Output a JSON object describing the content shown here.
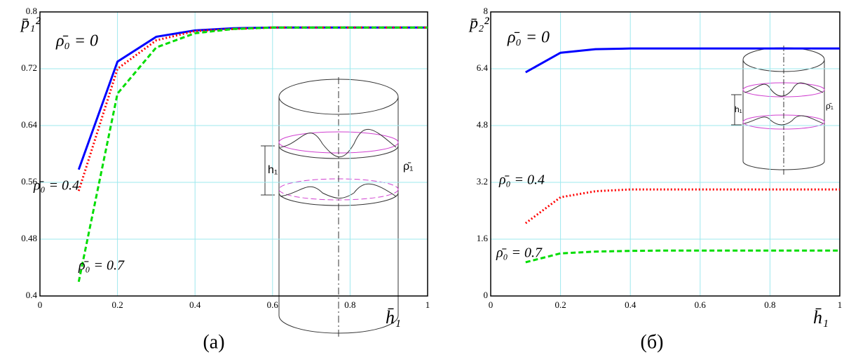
{
  "chart_data": [
    {
      "type": "line",
      "caption": "(a)",
      "ylabel": "p̄₁²",
      "xlabel": "h̄₁",
      "x": [
        0.1,
        0.2,
        0.3,
        0.4,
        0.5,
        0.6,
        0.7,
        0.8,
        0.9,
        1.0
      ],
      "xlim": [
        0,
        1
      ],
      "ylim": [
        0.4,
        0.8
      ],
      "xticks": [
        0,
        0.2,
        0.4,
        0.6,
        0.8,
        1
      ],
      "yticks": [
        0.4,
        0.48,
        0.56,
        0.64,
        0.72,
        0.8
      ],
      "grid": true,
      "inset_labels": [
        "h₁",
        "ρ̄₁"
      ],
      "series": [
        {
          "name": "ρ̄₀ = 0",
          "color": "#0000ff",
          "style": "solid",
          "values": [
            0.578,
            0.73,
            0.765,
            0.774,
            0.777,
            0.778,
            0.778,
            0.778,
            0.778,
            0.778
          ]
        },
        {
          "name": "ρ̄₀ = 0.4",
          "color": "#ff0000",
          "style": "dotted",
          "values": [
            0.548,
            0.72,
            0.76,
            0.773,
            0.776,
            0.778,
            0.778,
            0.778,
            0.778,
            0.778
          ]
        },
        {
          "name": "ρ̄₀ = 0.7",
          "color": "#00dd00",
          "style": "dashed",
          "values": [
            0.42,
            0.685,
            0.75,
            0.77,
            0.776,
            0.778,
            0.778,
            0.778,
            0.778,
            0.778
          ]
        }
      ]
    },
    {
      "type": "line",
      "caption": "(б)",
      "ylabel": "p̄₂²",
      "xlabel": "h̄₁",
      "x": [
        0.1,
        0.2,
        0.3,
        0.4,
        0.5,
        0.6,
        0.7,
        0.8,
        0.9,
        1.0
      ],
      "xlim": [
        0,
        1
      ],
      "ylim": [
        0,
        8
      ],
      "xticks": [
        0,
        0.2,
        0.4,
        0.6,
        0.8,
        1
      ],
      "yticks": [
        0,
        1.6,
        3.2,
        4.8,
        6.4,
        8
      ],
      "grid": true,
      "inset_labels": [
        "h₁",
        "ρ̄₁"
      ],
      "series": [
        {
          "name": "ρ̄₀ = 0",
          "color": "#0000ff",
          "style": "solid",
          "values": [
            6.3,
            6.85,
            6.95,
            6.97,
            6.97,
            6.97,
            6.97,
            6.97,
            6.97,
            6.97
          ]
        },
        {
          "name": "ρ̄₀ = 0.4",
          "color": "#ff0000",
          "style": "dotted",
          "values": [
            2.05,
            2.78,
            2.95,
            3.0,
            3.0,
            3.0,
            3.0,
            3.0,
            3.0,
            3.0
          ]
        },
        {
          "name": "ρ̄₀ = 0.7",
          "color": "#00dd00",
          "style": "dashed",
          "values": [
            0.95,
            1.2,
            1.25,
            1.27,
            1.28,
            1.28,
            1.28,
            1.28,
            1.28,
            1.28
          ]
        }
      ]
    }
  ]
}
